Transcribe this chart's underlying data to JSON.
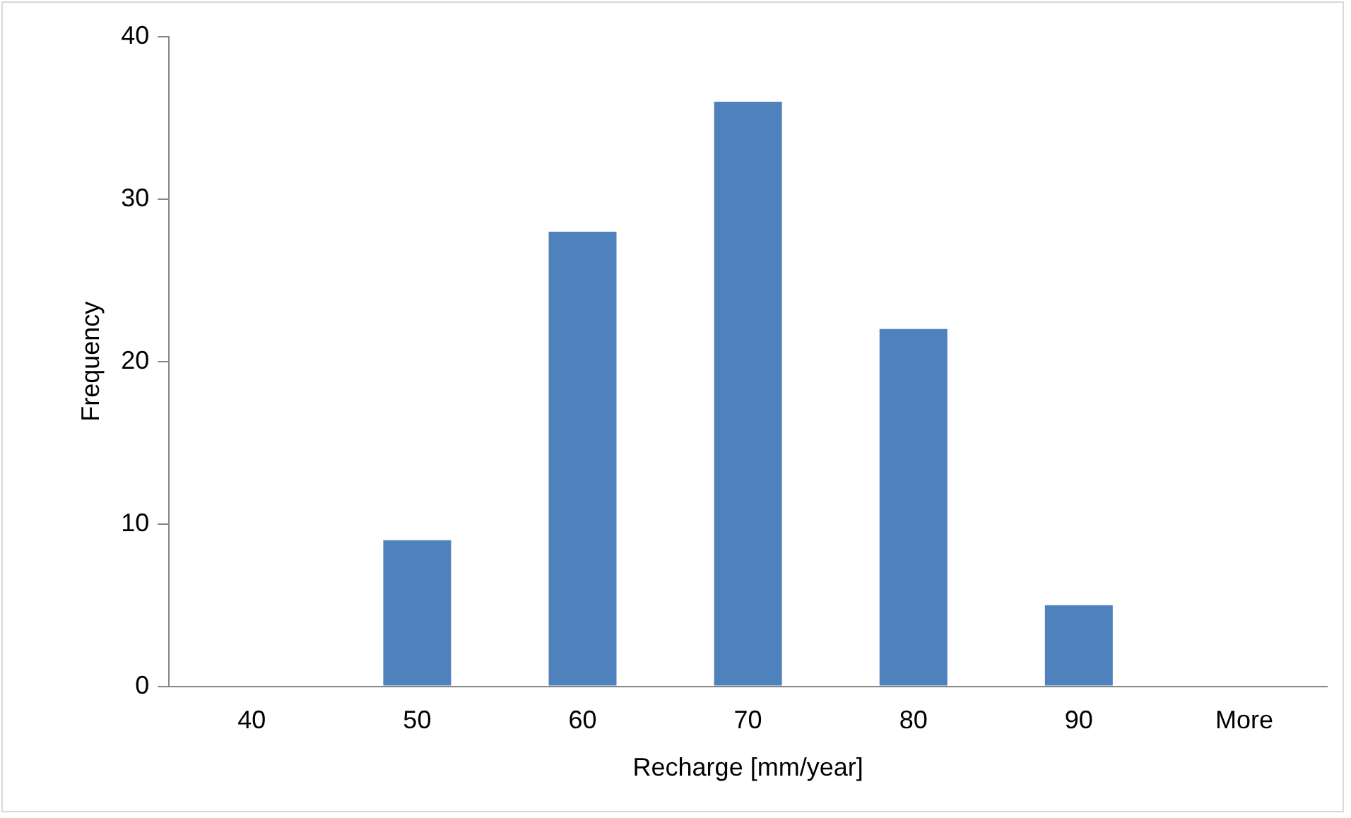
{
  "chart_data": {
    "type": "bar",
    "xlabel": "Recharge [mm/year]",
    "ylabel": "Frequency",
    "categories": [
      "40",
      "50",
      "60",
      "70",
      "80",
      "90",
      "More"
    ],
    "values": [
      0,
      9,
      28,
      36,
      22,
      5,
      0
    ],
    "color": "#4f81bd",
    "ylim": [
      0,
      40
    ],
    "yticks": [
      0,
      10,
      20,
      30,
      40
    ],
    "grid": false,
    "legend": false
  }
}
